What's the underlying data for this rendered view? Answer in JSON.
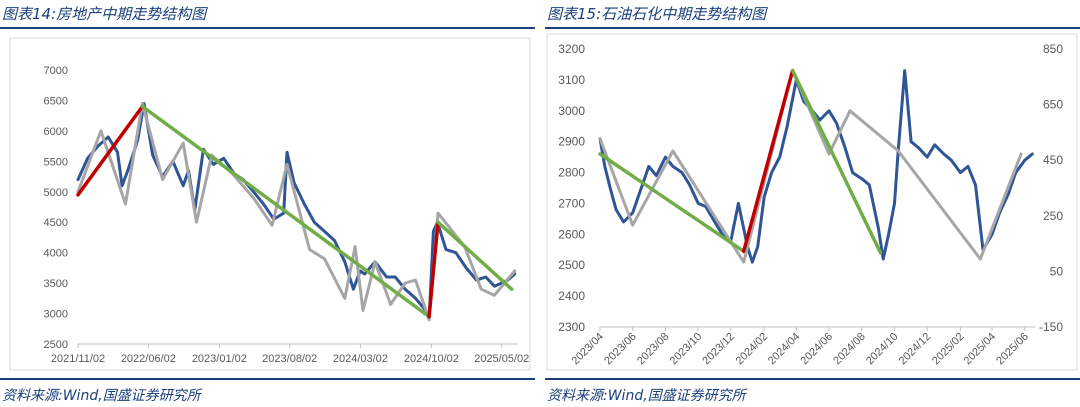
{
  "left": {
    "title": "图表14:房地产中期走势结构图",
    "source": "资料来源:Wind,国盛证券研究所"
  },
  "right": {
    "title": "图表15:石油石化中期走势结构图",
    "source": "资料来源:Wind,国盛证券研究所"
  },
  "chart_data": [
    {
      "type": "line",
      "title": "",
      "xlabel": "",
      "ylabel": "",
      "ylim": [
        2500,
        7000
      ],
      "x_ticks": [
        "2021/11/02",
        "2022/06/02",
        "2023/01/02",
        "2023/08/02",
        "2024/03/02",
        "2024/10/02",
        "2025/05/02"
      ],
      "y_ticks": [
        2500,
        3000,
        3500,
        4000,
        4500,
        5000,
        5500,
        6000,
        6500,
        7000
      ],
      "grid": false,
      "colors": {
        "price": "#2f5597",
        "structure": "#a6a6a6",
        "up": "#c00000",
        "down": "#70ad47"
      },
      "price_series": {
        "x": [
          "2021/11/02",
          "2021/12/01",
          "2022/01/01",
          "2022/02/01",
          "2022/03/01",
          "2022/03/15",
          "2022/04/01",
          "2022/05/01",
          "2022/05/20",
          "2022/06/15",
          "2022/07/15",
          "2022/08/15",
          "2022/09/15",
          "2022/10/01",
          "2022/10/20",
          "2022/11/15",
          "2022/12/15",
          "2023/01/15",
          "2023/02/15",
          "2023/03/15",
          "2023/04/15",
          "2023/05/15",
          "2023/06/15",
          "2023/07/15",
          "2023/07/25",
          "2023/08/15",
          "2023/09/15",
          "2023/10/15",
          "2023/11/15",
          "2023/12/15",
          "2024/01/15",
          "2024/02/10",
          "2024/03/01",
          "2024/03/15",
          "2024/04/15",
          "2024/05/20",
          "2024/06/15",
          "2024/07/15",
          "2024/08/15",
          "2024/09/15",
          "2024/09/25",
          "2024/10/08",
          "2024/10/20",
          "2024/11/15",
          "2024/12/15",
          "2025/01/15",
          "2025/02/15",
          "2025/03/15",
          "2025/04/10",
          "2025/05/01",
          "2025/05/20",
          "2025/06/10"
        ],
        "values": [
          5200,
          5550,
          5750,
          5900,
          5650,
          5100,
          5350,
          5850,
          6450,
          5600,
          5250,
          5500,
          5100,
          5350,
          4700,
          5700,
          5450,
          5550,
          5300,
          5200,
          5000,
          4800,
          4550,
          4650,
          5650,
          5150,
          4800,
          4500,
          4350,
          4200,
          3850,
          3400,
          3700,
          3650,
          3850,
          3600,
          3600,
          3400,
          3250,
          3050,
          2900,
          4350,
          4500,
          4050,
          4000,
          3750,
          3550,
          3600,
          3450,
          3500,
          3550,
          3650
        ]
      },
      "structure_series": {
        "x": [
          "2021/11/02",
          "2022/01/10",
          "2022/03/25",
          "2022/05/15",
          "2022/07/15",
          "2022/09/15",
          "2022/10/25",
          "2022/12/10",
          "2023/02/10",
          "2023/04/15",
          "2023/06/10",
          "2023/07/25",
          "2023/10/01",
          "2023/11/15",
          "2024/01/15",
          "2024/02/15",
          "2024/03/10",
          "2024/04/15",
          "2024/06/01",
          "2024/07/15",
          "2024/08/15",
          "2024/09/25",
          "2024/10/22",
          "2025/01/10",
          "2025/03/01",
          "2025/04/10",
          "2025/06/10"
        ],
        "values": [
          5000,
          6000,
          4800,
          6450,
          5200,
          5800,
          4500,
          5600,
          5300,
          4900,
          4450,
          5450,
          4050,
          3900,
          3250,
          4100,
          3050,
          3850,
          3150,
          3500,
          3550,
          2900,
          4650,
          4100,
          3400,
          3300,
          3700
        ]
      },
      "trend_segments": [
        {
          "color": "up",
          "x": [
            "2021/11/02",
            "2022/05/15"
          ],
          "values": [
            4950,
            6400
          ]
        },
        {
          "color": "down",
          "x": [
            "2022/05/15",
            "2024/09/25"
          ],
          "values": [
            6400,
            2950
          ]
        },
        {
          "color": "up",
          "x": [
            "2024/09/25",
            "2024/10/22"
          ],
          "values": [
            2950,
            4500
          ]
        },
        {
          "color": "down",
          "x": [
            "2024/10/22",
            "2025/06/01"
          ],
          "values": [
            4500,
            3400
          ]
        }
      ]
    },
    {
      "type": "line",
      "title": "",
      "xlabel": "",
      "ylabel": "",
      "ylim": [
        2300,
        3200
      ],
      "ylim_right": [
        -150,
        850
      ],
      "x_ticks": [
        "2023/04",
        "2023/06",
        "2023/08",
        "2023/10",
        "2023/12",
        "2024/02",
        "2024/04",
        "2024/06",
        "2024/08",
        "2024/10",
        "2024/12",
        "2025/02",
        "2025/04",
        "2025/06"
      ],
      "y_ticks": [
        2300,
        2400,
        2500,
        2600,
        2700,
        2800,
        2900,
        3000,
        3100,
        3200
      ],
      "y_ticks_right": [
        -150,
        50,
        250,
        450,
        650,
        850
      ],
      "grid": false,
      "colors": {
        "price": "#2f5597",
        "structure": "#a6a6a6",
        "up": "#c00000",
        "down": "#70ad47"
      },
      "price_series": {
        "x": [
          "2023/04/01",
          "2023/04/10",
          "2023/04/20",
          "2023/05/01",
          "2023/05/15",
          "2023/06/01",
          "2023/06/15",
          "2023/07/01",
          "2023/07/15",
          "2023/08/01",
          "2023/08/15",
          "2023/09/01",
          "2023/09/15",
          "2023/10/01",
          "2023/10/15",
          "2023/11/01",
          "2023/11/15",
          "2023/12/01",
          "2023/12/15",
          "2024/01/01",
          "2024/01/10",
          "2024/01/20",
          "2024/02/01",
          "2024/02/15",
          "2024/03/01",
          "2024/03/15",
          "2024/04/01",
          "2024/04/15",
          "2024/05/01",
          "2024/05/15",
          "2024/06/01",
          "2024/06/15",
          "2024/07/01",
          "2024/07/15",
          "2024/08/01",
          "2024/08/15",
          "2024/09/01",
          "2024/09/10",
          "2024/09/20",
          "2024/10/01",
          "2024/10/08",
          "2024/10/20",
          "2024/11/01",
          "2024/11/15",
          "2024/12/01",
          "2024/12/15",
          "2025/01/01",
          "2025/01/15",
          "2025/02/01",
          "2025/02/15",
          "2025/03/01",
          "2025/03/15",
          "2025/04/01",
          "2025/04/15",
          "2025/05/01",
          "2025/05/15",
          "2025/06/01",
          "2025/06/15"
        ],
        "values": [
          2910,
          2820,
          2750,
          2680,
          2640,
          2670,
          2740,
          2820,
          2790,
          2850,
          2820,
          2800,
          2760,
          2700,
          2690,
          2640,
          2600,
          2580,
          2700,
          2560,
          2510,
          2560,
          2720,
          2800,
          2850,
          2950,
          3100,
          3030,
          3000,
          2970,
          3000,
          2960,
          2880,
          2800,
          2780,
          2760,
          2620,
          2520,
          2600,
          2700,
          2870,
          3130,
          2900,
          2880,
          2850,
          2890,
          2860,
          2840,
          2800,
          2820,
          2760,
          2550,
          2600,
          2670,
          2730,
          2800,
          2840,
          2860
        ]
      },
      "structure_series": {
        "x": [
          "2023/04/01",
          "2023/06/01",
          "2023/08/15",
          "2023/12/25",
          "2024/03/25",
          "2024/06/01",
          "2024/07/10",
          "2024/10/08",
          "2025/03/10",
          "2025/05/25"
        ],
        "values": [
          2910,
          2630,
          2870,
          2510,
          3130,
          2860,
          3000,
          2870,
          2520,
          2860
        ]
      },
      "trend_segments": [
        {
          "color": "down",
          "x": [
            "2023/04/01",
            "2023/12/25"
          ],
          "values": [
            2860,
            2545
          ]
        },
        {
          "color": "up",
          "x": [
            "2023/12/25",
            "2024/03/25"
          ],
          "values": [
            2545,
            3130
          ]
        },
        {
          "color": "down",
          "x": [
            "2024/03/25",
            "2024/09/05"
          ],
          "values": [
            3130,
            2540
          ]
        }
      ]
    }
  ]
}
